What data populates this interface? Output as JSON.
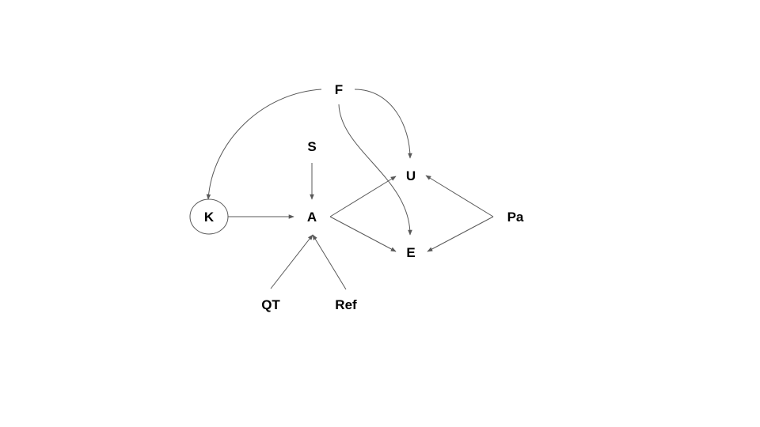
{
  "colors": {
    "edge": "#595959",
    "text": "#000000",
    "background": "#ffffff"
  },
  "nodes": {
    "F": "F",
    "S": "S",
    "U": "U",
    "K": "K",
    "A": "A",
    "Pa": "Pa",
    "E": "E",
    "QT": "QT",
    "Ref": "Ref"
  },
  "edges": [
    {
      "from": "F",
      "to": "K"
    },
    {
      "from": "F",
      "to": "U"
    },
    {
      "from": "F",
      "to": "E"
    },
    {
      "from": "S",
      "to": "A"
    },
    {
      "from": "K",
      "to": "A"
    },
    {
      "from": "A",
      "to": "U"
    },
    {
      "from": "A",
      "to": "E"
    },
    {
      "from": "Pa",
      "to": "U"
    },
    {
      "from": "Pa",
      "to": "E"
    },
    {
      "from": "QT",
      "to": "A"
    },
    {
      "from": "Ref",
      "to": "A"
    }
  ]
}
